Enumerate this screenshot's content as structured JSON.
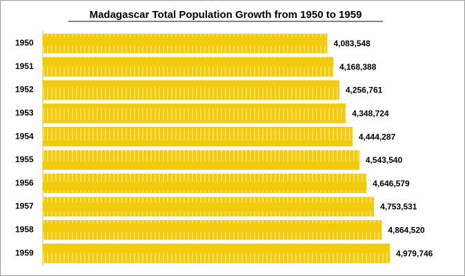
{
  "chart_data": {
    "type": "bar",
    "orientation": "horizontal",
    "title": "Madagascar Total Population Growth from 1950 to 1959",
    "categories": [
      "1950",
      "1951",
      "1952",
      "1953",
      "1954",
      "1955",
      "1956",
      "1957",
      "1958",
      "1959"
    ],
    "values": [
      4083548,
      4168388,
      4256761,
      4348724,
      4444287,
      4543540,
      4646579,
      4753531,
      4864520,
      4979746
    ],
    "value_labels": [
      "4,083,548",
      "4,168,388",
      "4,256,761",
      "4,348,724",
      "4,444,287",
      "4,543,540",
      "4,646,579",
      "4,753,531",
      "4,864,520",
      "4,979,746"
    ],
    "color": "#f2cc0c",
    "xlim": [
      0,
      6000000
    ]
  }
}
